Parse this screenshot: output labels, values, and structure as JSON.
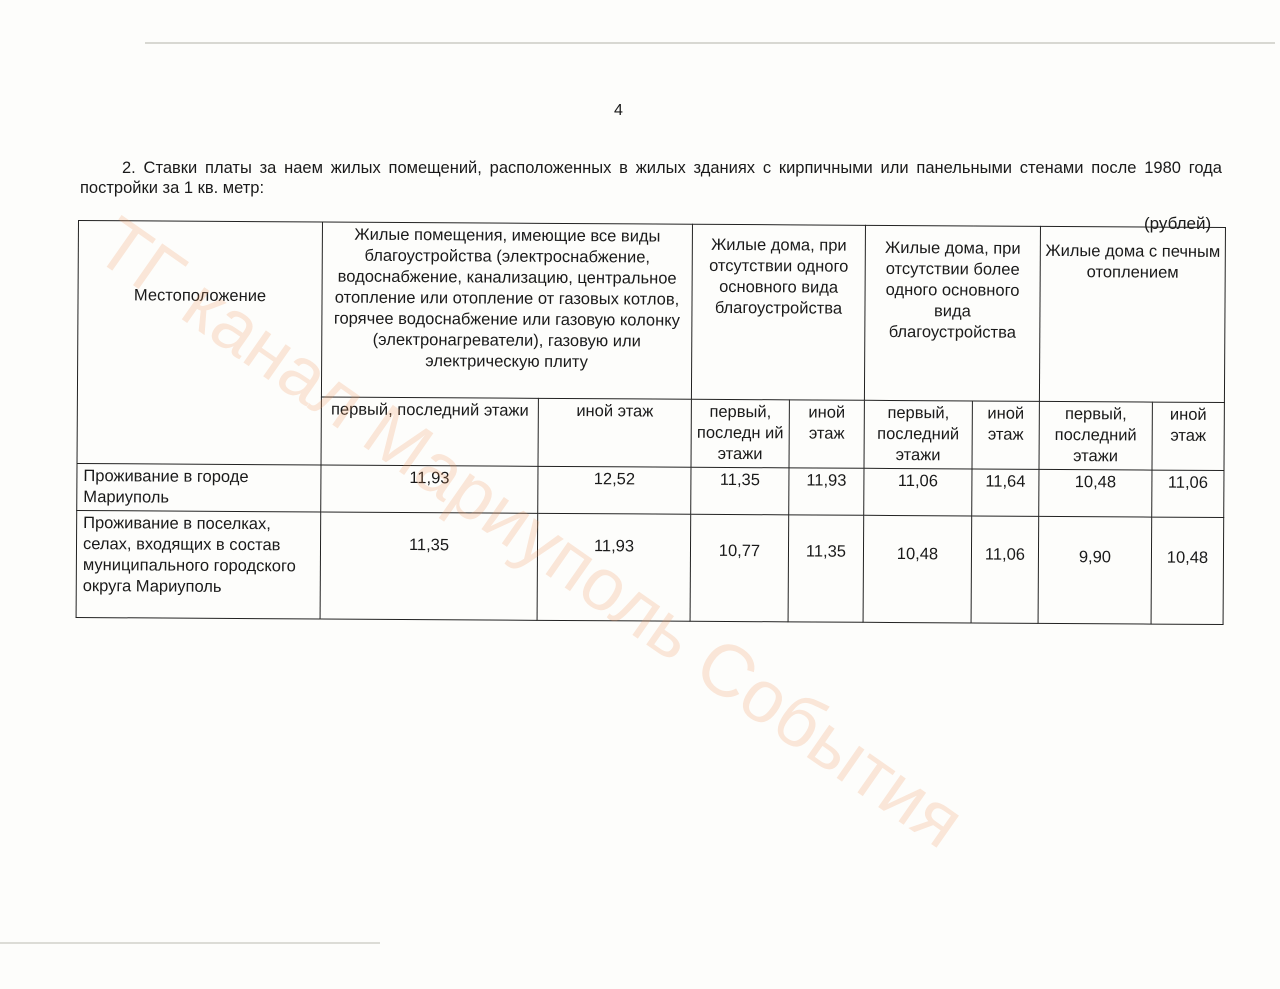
{
  "page_number": "4",
  "intro": "2. Ставки платы за наем жилых помещений, расположенных в жилых зданиях с кирпичными или панельными стенами после 1980 года постройки за 1 кв. метр:",
  "unit": "(рублей)",
  "table": {
    "location_header": "Местоположение",
    "groups": [
      "Жилые помещения, имеющие все виды благоустройства (электроснабжение, водоснабжение, канализацию, центральное отопление или отопление от газовых котлов, горячее водоснабжение или газовую колонку (электронагреватели), газовую или электрическую плиту",
      "Жилые дома, при отсутствии одного основного вида благоустройства",
      "Жилые дома, при отсутствии более одного основного вида благоустройства",
      "Жилые дома с печным отоплением"
    ],
    "subheaders": [
      "первый, последний этажи",
      "иной этаж",
      "первый, последн ий этажи",
      "иной этаж",
      "первый, последний этажи",
      "иной этаж",
      "первый, последний этажи",
      "иной этаж"
    ],
    "rows": [
      {
        "location": "Проживание в городе Мариуполь",
        "values": [
          "11,93",
          "12,52",
          "11,35",
          "11,93",
          "11,06",
          "11,64",
          "10,48",
          "11,06"
        ]
      },
      {
        "location": "Проживание в поселках, селах, входящих в состав муниципального городского округа Мариуполь",
        "values": [
          "11,35",
          "11,93",
          "10,77",
          "11,35",
          "10,48",
          "11,06",
          "9,90",
          "10,48"
        ]
      }
    ]
  },
  "watermark": "ТГ канал Мариуполь События"
}
